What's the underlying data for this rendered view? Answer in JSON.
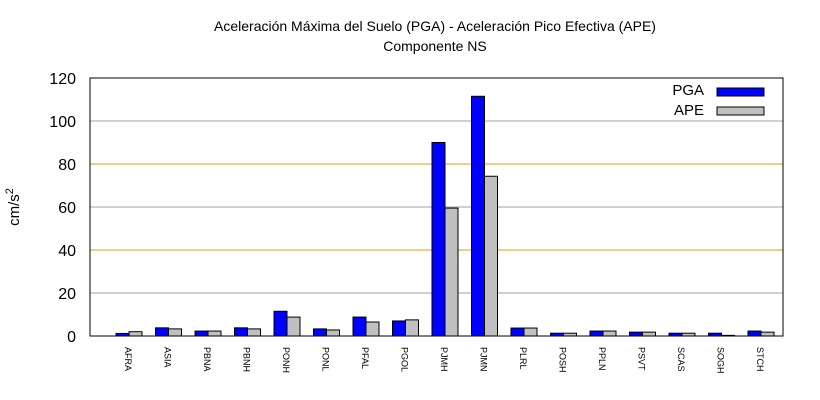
{
  "chart_data": {
    "type": "bar",
    "title": "Aceleración Máxima del Suelo (PGA) -  Aceleración Pico Efectiva (APE)",
    "subtitle": "Componente NS",
    "xlabel": "",
    "ylabel": "cm/s",
    "ylabel_superscript": "2",
    "ylim": [
      0,
      120
    ],
    "yticks": [
      "0",
      "20",
      "40",
      "60",
      "80",
      "100",
      "120"
    ],
    "grid": true,
    "legend_position": "top-right",
    "categories": [
      "AFRA",
      "ASIA",
      "PBNA",
      "PBNH",
      "PONH",
      "PONL",
      "PFAL",
      "PGOL",
      "PJMH",
      "PJMN",
      "PLRL",
      "POSH",
      "PPLN",
      "PSVT",
      "SCAS",
      "SOGH",
      "STCH"
    ],
    "series": [
      {
        "name": "PGA",
        "color": "#0000ff",
        "values": [
          1.2,
          3.8,
          2.3,
          3.8,
          11.5,
          3.3,
          8.8,
          7.0,
          90.0,
          111.5,
          3.7,
          1.3,
          2.3,
          1.8,
          1.3,
          1.3,
          2.3
        ]
      },
      {
        "name": "APE",
        "color": "#c0c0c0",
        "values": [
          2.0,
          3.3,
          2.3,
          3.3,
          8.8,
          2.8,
          6.5,
          7.5,
          59.5,
          74.3,
          3.7,
          1.3,
          2.3,
          1.8,
          1.3,
          0.3,
          1.8
        ]
      }
    ]
  }
}
